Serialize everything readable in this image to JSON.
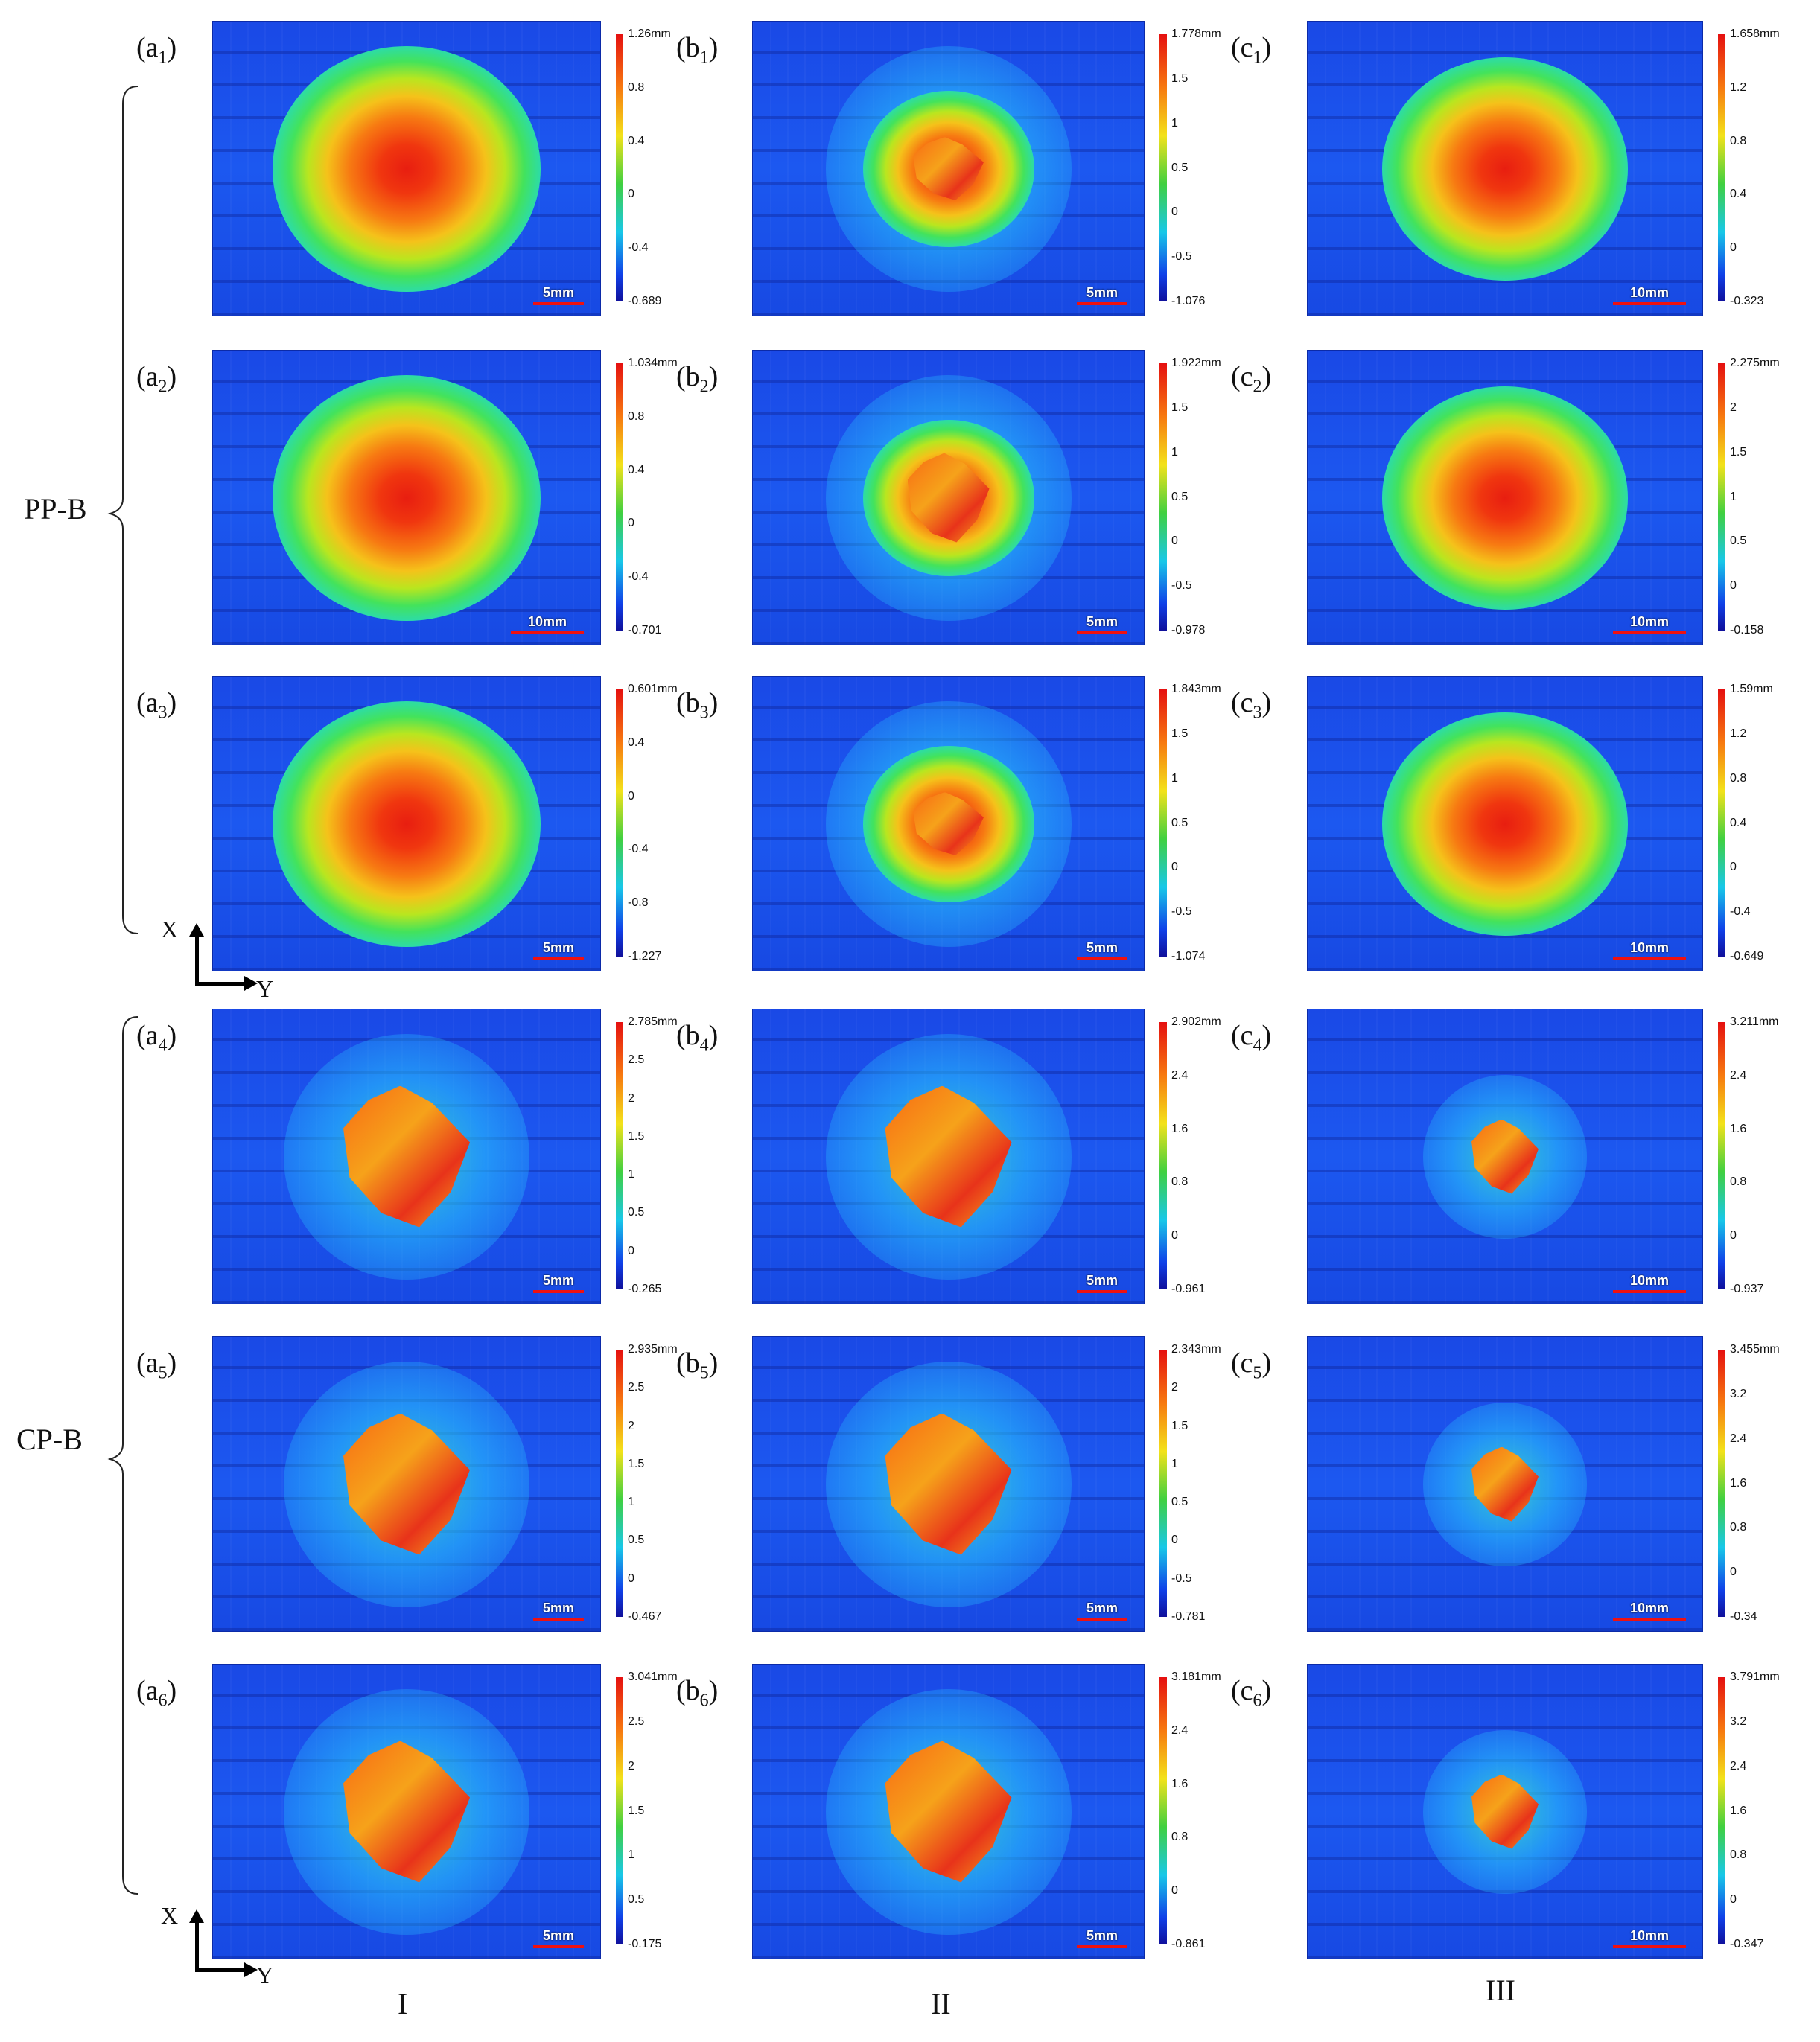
{
  "group_labels": {
    "pp_b": "PP-B",
    "cp_b": "CP-B"
  },
  "column_labels": [
    "I",
    "II",
    "III"
  ],
  "axis_labels": {
    "x": "X",
    "y": "Y"
  },
  "colors": {
    "high": "#e81e10",
    "mid": "#f3e21a",
    "low": "#1040e8",
    "scale_bar": "#e11111"
  },
  "panels": [
    {
      "letter": "a",
      "sub": "1",
      "scale": "5mm",
      "max": "1.26mm",
      "ticks": [
        "0.8",
        "0.4",
        "0",
        "-0.4"
      ],
      "min": "-0.689",
      "type": "smooth"
    },
    {
      "letter": "b",
      "sub": "1",
      "scale": "5mm",
      "max": "1.778mm",
      "ticks": [
        "1.5",
        "1",
        "0.5",
        "0",
        "-0.5"
      ],
      "min": "-1.076",
      "type": "small"
    },
    {
      "letter": "c",
      "sub": "1",
      "scale": "10mm",
      "max": "1.658mm",
      "ticks": [
        "1.2",
        "0.8",
        "0.4",
        "0"
      ],
      "min": "-0.323",
      "type": "smooth"
    },
    {
      "letter": "a",
      "sub": "2",
      "scale": "10mm",
      "max": "1.034mm",
      "ticks": [
        "0.8",
        "0.4",
        "0",
        "-0.4"
      ],
      "min": "-0.701",
      "type": "smooth"
    },
    {
      "letter": "b",
      "sub": "2",
      "scale": "5mm",
      "max": "1.922mm",
      "ticks": [
        "1.5",
        "1",
        "0.5",
        "0",
        "-0.5"
      ],
      "min": "-0.978",
      "type": "diamond"
    },
    {
      "letter": "c",
      "sub": "2",
      "scale": "10mm",
      "max": "2.275mm",
      "ticks": [
        "2",
        "1.5",
        "1",
        "0.5",
        "0"
      ],
      "min": "-0.158",
      "type": "smooth"
    },
    {
      "letter": "a",
      "sub": "3",
      "scale": "5mm",
      "max": "0.601mm",
      "ticks": [
        "0.4",
        "0",
        "-0.4",
        "-0.8"
      ],
      "min": "-1.227",
      "type": "smooth"
    },
    {
      "letter": "b",
      "sub": "3",
      "scale": "5mm",
      "max": "1.843mm",
      "ticks": [
        "1.5",
        "1",
        "0.5",
        "0",
        "-0.5"
      ],
      "min": "-1.074",
      "type": "small"
    },
    {
      "letter": "c",
      "sub": "3",
      "scale": "10mm",
      "max": "1.59mm",
      "ticks": [
        "1.2",
        "0.8",
        "0.4",
        "0",
        "-0.4"
      ],
      "min": "-0.649",
      "type": "smooth"
    },
    {
      "letter": "a",
      "sub": "4",
      "scale": "5mm",
      "max": "2.785mm",
      "ticks": [
        "2.5",
        "2",
        "1.5",
        "1",
        "0.5",
        "0"
      ],
      "min": "-0.265",
      "type": "crater"
    },
    {
      "letter": "b",
      "sub": "4",
      "scale": "5mm",
      "max": "2.902mm",
      "ticks": [
        "2.4",
        "1.6",
        "0.8",
        "0"
      ],
      "min": "-0.961",
      "type": "crater"
    },
    {
      "letter": "c",
      "sub": "4",
      "scale": "10mm",
      "max": "3.211mm",
      "ticks": [
        "2.4",
        "1.6",
        "0.8",
        "0"
      ],
      "min": "-0.937",
      "type": "craterSmall"
    },
    {
      "letter": "a",
      "sub": "5",
      "scale": "5mm",
      "max": "2.935mm",
      "ticks": [
        "2.5",
        "2",
        "1.5",
        "1",
        "0.5",
        "0"
      ],
      "min": "-0.467",
      "type": "crater"
    },
    {
      "letter": "b",
      "sub": "5",
      "scale": "5mm",
      "max": "2.343mm",
      "ticks": [
        "2",
        "1.5",
        "1",
        "0.5",
        "0",
        "-0.5"
      ],
      "min": "-0.781",
      "type": "crater"
    },
    {
      "letter": "c",
      "sub": "5",
      "scale": "10mm",
      "max": "3.455mm",
      "ticks": [
        "3.2",
        "2.4",
        "1.6",
        "0.8",
        "0"
      ],
      "min": "-0.34",
      "type": "craterSmall"
    },
    {
      "letter": "a",
      "sub": "6",
      "scale": "5mm",
      "max": "3.041mm",
      "ticks": [
        "2.5",
        "2",
        "1.5",
        "1",
        "0.5"
      ],
      "min": "-0.175",
      "type": "crater"
    },
    {
      "letter": "b",
      "sub": "6",
      "scale": "5mm",
      "max": "3.181mm",
      "ticks": [
        "2.4",
        "1.6",
        "0.8",
        "0"
      ],
      "min": "-0.861",
      "type": "crater"
    },
    {
      "letter": "c",
      "sub": "6",
      "scale": "10mm",
      "max": "3.791mm",
      "ticks": [
        "3.2",
        "2.4",
        "1.6",
        "0.8",
        "0"
      ],
      "min": "-0.347",
      "type": "craterSmall"
    }
  ]
}
